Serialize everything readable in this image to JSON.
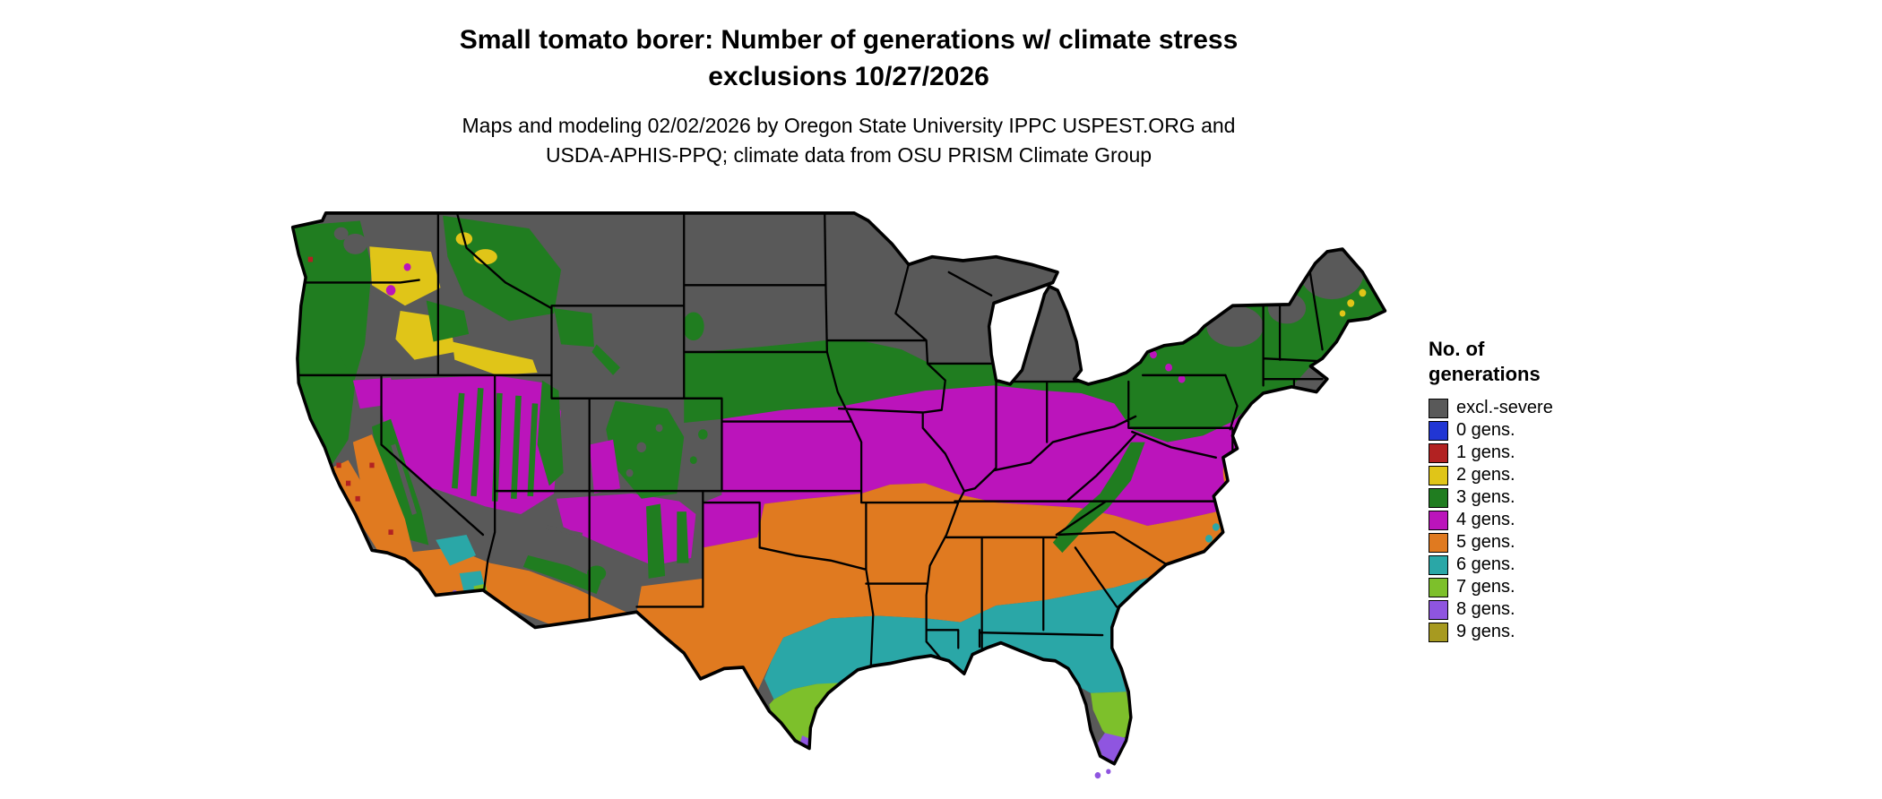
{
  "figure": {
    "background": "#ffffff"
  },
  "header": {
    "title": "Small tomato borer: Number of generations w/ climate stress exclusions 10/27/2026",
    "subtitle": "Maps and modeling 02/02/2026 by Oregon State University IPPC USPEST.ORG and USDA-APHIS-PPQ; climate data from OSU PRISM Climate Group"
  },
  "legend": {
    "title": "No. of generations",
    "entries": [
      {
        "key": "excl",
        "label": "excl.-severe",
        "color": "#595959"
      },
      {
        "key": "g0",
        "label": "0 gens.",
        "color": "#2136d4"
      },
      {
        "key": "g1",
        "label": "1 gens.",
        "color": "#b22222"
      },
      {
        "key": "g2",
        "label": "2 gens.",
        "color": "#e0c518"
      },
      {
        "key": "g3",
        "label": "3 gens.",
        "color": "#207d20"
      },
      {
        "key": "g4",
        "label": "4 gens.",
        "color": "#bb14bb"
      },
      {
        "key": "g5",
        "label": "5 gens.",
        "color": "#e07a20"
      },
      {
        "key": "g6",
        "label": "6 gens.",
        "color": "#2aa7a7"
      },
      {
        "key": "g7",
        "label": "7 gens.",
        "color": "#7dc02b"
      },
      {
        "key": "g8",
        "label": "8 gens.",
        "color": "#8f55e0"
      },
      {
        "key": "g9",
        "label": "9 gens.",
        "color": "#a79a20"
      }
    ]
  },
  "chart_data": {
    "type": "heatmap",
    "subtype": "categorical raster choropleth map",
    "region": "Conterminous United States with state boundaries",
    "variable": "Number of generations of small tomato borer with climate stress exclusions",
    "date_shown": "10/27/2026",
    "categories": [
      "excl.-severe",
      "0 gens.",
      "1 gens.",
      "2 gens.",
      "3 gens.",
      "4 gens.",
      "5 gens.",
      "6 gens.",
      "7 gens.",
      "8 gens.",
      "9 gens."
    ],
    "colors": [
      "#595959",
      "#2136d4",
      "#b22222",
      "#e0c518",
      "#207d20",
      "#bb14bb",
      "#e07a20",
      "#2aa7a7",
      "#7dc02b",
      "#8f55e0",
      "#a79a20"
    ],
    "legend_position": "right",
    "regional_pattern": [
      {
        "category": "excl.-severe",
        "approx_extent": "Northern tier and high elevations: eastern Montana, Wyoming, the Dakotas, Minnesota, Wisconsin, most of Michigan, high plains of eastern Colorado, high Rockies, Sierra crest, Adirondacks and interior northern New England"
      },
      {
        "category": "0 gens.",
        "approx_extent": "Not visibly present on map (legend class only)"
      },
      {
        "category": "1 gens.",
        "approx_extent": "Scattered small specks along the Pacific coast of Washington, Oregon and California"
      },
      {
        "category": "2 gens.",
        "approx_extent": "Columbia Basin of Washington/Oregon, Snake River Plain of Idaho, western Montana valleys, scattered coastal Maine"
      },
      {
        "category": "3 gens.",
        "approx_extent": "Pacific Northwest forests, northern Great Basin ranges, Wasatch and Colorado Rockies, Black Hills, Nebraska-Iowa belt, southern Great Lakes fringe, Appalachian ridge, Pennsylvania, New York and coastal New England"
      },
      {
        "category": "4 gens.",
        "approx_extent": "Great Basin of Nevada/western Utah, Colorado Plateau and northern New Mexico, Texas panhandle, broad band from Kansas through Missouri, Illinois, Indiana, Ohio, Kentucky to Virginia and the mid-Atlantic coast"
      },
      {
        "category": "5 gens.",
        "approx_extent": "California Central Valley and coast, low deserts of southern Arizona/New Mexico, Trans-Pecos and north Texas, Oklahoma, Arkansas, Tennessee and the inland Southeast to the Carolinas"
      },
      {
        "category": "6 gens.",
        "approx_extent": "Central and coastal Texas, Gulf Coast through Louisiana, Mississippi, south Alabama, south Georgia and the Florida panhandle; Mojave/Salton patches in southern California"
      },
      {
        "category": "7 gens.",
        "approx_extent": "South Texas coastal bend and the central Florida peninsula"
      },
      {
        "category": "8 gens.",
        "approx_extent": "Lower Rio Grande Valley tip of Texas and far southern Florida"
      },
      {
        "category": "9 gens.",
        "approx_extent": "Not visibly present on map (legend class only)"
      }
    ]
  }
}
